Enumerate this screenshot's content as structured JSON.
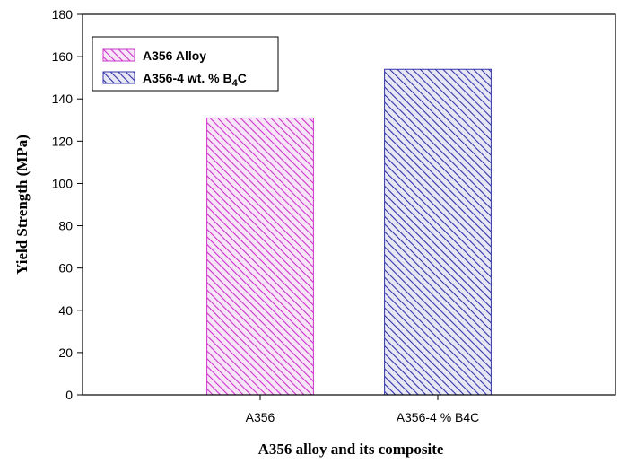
{
  "chart_data": {
    "type": "bar",
    "categories": [
      "A356",
      "A356-4 % B4C"
    ],
    "values": [
      131,
      154
    ],
    "xlabel": "A356 alloy and its composite",
    "ylabel": "Yield Strength (MPa)",
    "ylim": [
      0,
      180
    ],
    "yticks": [
      0,
      20,
      40,
      60,
      80,
      100,
      120,
      140,
      160,
      180
    ],
    "grid": false,
    "legend_position": "top-left",
    "legend": [
      {
        "label": "A356 Alloy",
        "color": "#cc33cc",
        "pattern": "diagonal-hatch"
      },
      {
        "label_main": "A356-4 wt. % B",
        "label_sub": "4",
        "label_end": "C",
        "color": "#3333aa",
        "pattern": "diagonal-hatch"
      }
    ],
    "bar_colors": [
      "#cc33cc",
      "#3333aa"
    ]
  }
}
